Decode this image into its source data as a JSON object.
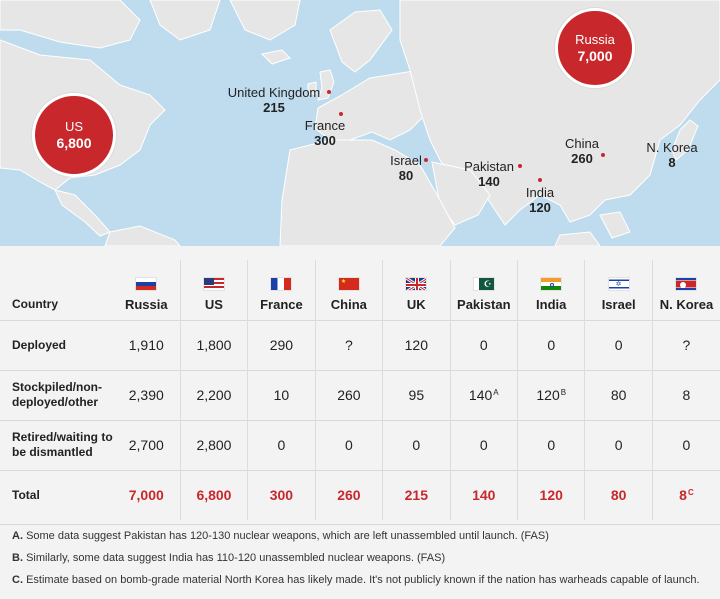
{
  "map": {
    "labels": [
      {
        "id": "us",
        "name": "US",
        "count": "6,800",
        "bubble": true
      },
      {
        "id": "russia",
        "name": "Russia",
        "count": "7,000",
        "bubble": true
      },
      {
        "id": "uk",
        "name": "United Kingdom",
        "count": "215"
      },
      {
        "id": "france",
        "name": "France",
        "count": "300"
      },
      {
        "id": "israel",
        "name": "Israel",
        "count": "80"
      },
      {
        "id": "pakistan",
        "name": "Pakistan",
        "count": "140"
      },
      {
        "id": "india",
        "name": "India",
        "count": "120"
      },
      {
        "id": "china",
        "name": "China",
        "count": "260"
      },
      {
        "id": "nkorea",
        "name": "N. Korea",
        "count": "8"
      }
    ],
    "colors": {
      "water": "#bfdcef",
      "land": "#e6e6e6",
      "highlight": "#c8282c"
    }
  },
  "table": {
    "row_header": "Country",
    "countries": [
      "Russia",
      "US",
      "France",
      "China",
      "UK",
      "Pakistan",
      "India",
      "Israel",
      "N. Korea"
    ],
    "flags": [
      "flag-russia-icon",
      "flag-us-icon",
      "flag-france-icon",
      "flag-china-icon",
      "flag-uk-icon",
      "flag-pakistan-icon",
      "flag-india-icon",
      "flag-israel-icon",
      "flag-north-korea-icon"
    ],
    "rows": [
      {
        "label": "Deployed",
        "values": [
          "1,910",
          "1,800",
          "290",
          "?",
          "120",
          "0",
          "0",
          "0",
          "?"
        ],
        "notes": [
          "",
          "",
          "",
          "",
          "",
          "",
          "",
          "",
          ""
        ]
      },
      {
        "label": "Stockpiled/non-deployed/other",
        "values": [
          "2,390",
          "2,200",
          "10",
          "260",
          "95",
          "140",
          "120",
          "80",
          "8"
        ],
        "notes": [
          "",
          "",
          "",
          "",
          "",
          "A",
          "B",
          "",
          ""
        ]
      },
      {
        "label": "Retired/waiting to be dismantled",
        "values": [
          "2,700",
          "2,800",
          "0",
          "0",
          "0",
          "0",
          "0",
          "0",
          "0"
        ],
        "notes": [
          "",
          "",
          "",
          "",
          "",
          "",
          "",
          "",
          ""
        ]
      },
      {
        "label": "Total",
        "values": [
          "7,000",
          "6,800",
          "300",
          "260",
          "215",
          "140",
          "120",
          "80",
          "8"
        ],
        "notes": [
          "",
          "",
          "",
          "",
          "",
          "",
          "",
          "",
          "C"
        ],
        "total": true
      }
    ]
  },
  "notes": [
    {
      "key": "A.",
      "text": "Some data suggest Pakistan has 120-130 nuclear weapons, which are left unassembled until launch. (FAS)"
    },
    {
      "key": "B.",
      "text": "Similarly, some data suggest India has 110-120 unassembled nuclear weapons. (FAS)"
    },
    {
      "key": "C.",
      "text": "Estimate based on bomb-grade material North Korea has likely made. It's not publicly known if the nation has warheads capable of launch."
    }
  ]
}
